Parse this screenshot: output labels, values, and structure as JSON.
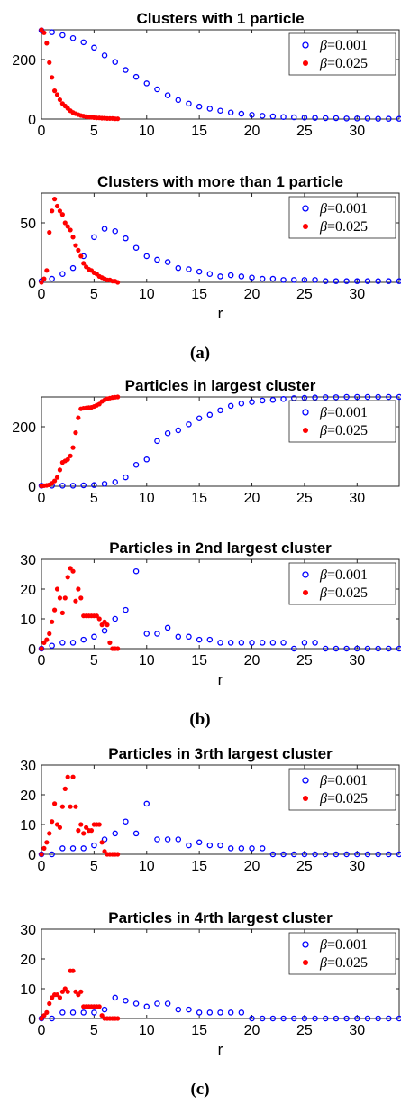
{
  "panel_labels": [
    "(a)",
    "(b)",
    "(c)"
  ],
  "chart_data": [
    {
      "type": "scatter",
      "title": "Clusters with 1 particle",
      "xlabel": "",
      "ylabel": "",
      "xlim": [
        0,
        34
      ],
      "ylim": [
        0,
        300
      ],
      "xticks": [
        0,
        5,
        10,
        15,
        20,
        25,
        30
      ],
      "yticks": [
        0,
        200
      ],
      "legend_position": "top-right",
      "series": [
        {
          "name": "β=0.001",
          "marker": "open-circle",
          "color": "#0000ff",
          "x": [
            0,
            1,
            2,
            3,
            4,
            5,
            6,
            7,
            8,
            9,
            10,
            11,
            12,
            13,
            14,
            15,
            16,
            17,
            18,
            19,
            20,
            21,
            22,
            23,
            24,
            25,
            26,
            27,
            28,
            29,
            30,
            31,
            32,
            33,
            34
          ],
          "y": [
            298,
            292,
            282,
            272,
            258,
            240,
            214,
            192,
            165,
            142,
            120,
            100,
            80,
            64,
            52,
            42,
            35,
            28,
            22,
            18,
            14,
            11,
            9,
            7,
            6,
            5,
            4,
            3,
            3,
            2,
            2,
            2,
            1,
            1,
            1
          ]
        },
        {
          "name": "β=0.025",
          "marker": "filled-dot",
          "color": "#ff0000",
          "x": [
            0,
            0.25,
            0.5,
            0.75,
            1,
            1.25,
            1.5,
            1.75,
            2,
            2.25,
            2.5,
            2.75,
            3,
            3.25,
            3.5,
            3.75,
            4,
            4.25,
            4.5,
            4.75,
            5,
            5.25,
            5.5,
            5.75,
            6,
            6.25,
            6.5,
            6.75,
            7,
            7.25
          ],
          "y": [
            300,
            290,
            255,
            190,
            140,
            95,
            82,
            65,
            52,
            44,
            36,
            28,
            22,
            18,
            15,
            12,
            10,
            8,
            7,
            6,
            5,
            4,
            4,
            3,
            3,
            2,
            2,
            2,
            1,
            1
          ]
        }
      ]
    },
    {
      "type": "scatter",
      "title": "Clusters with more than 1 particle",
      "xlabel": "r",
      "ylabel": "",
      "xlim": [
        0,
        34
      ],
      "ylim": [
        0,
        75
      ],
      "xticks": [
        0,
        5,
        10,
        15,
        20,
        25,
        30
      ],
      "yticks": [
        0,
        50
      ],
      "legend_position": "top-right",
      "series": [
        {
          "name": "β=0.001",
          "marker": "open-circle",
          "color": "#0000ff",
          "x": [
            0,
            1,
            2,
            3,
            4,
            5,
            6,
            7,
            8,
            9,
            10,
            11,
            12,
            13,
            14,
            15,
            16,
            17,
            18,
            19,
            20,
            21,
            22,
            23,
            24,
            25,
            26,
            27,
            28,
            29,
            30,
            31,
            32,
            33,
            34
          ],
          "y": [
            1,
            3,
            7,
            12,
            22,
            38,
            45,
            43,
            37,
            29,
            22,
            19,
            17,
            12,
            11,
            9,
            7,
            5,
            6,
            5,
            4,
            3,
            3,
            2,
            2,
            2,
            2,
            1,
            1,
            1,
            1,
            1,
            1,
            1,
            1
          ]
        },
        {
          "name": "β=0.025",
          "marker": "filled-dot",
          "color": "#ff0000",
          "x": [
            0,
            0.25,
            0.5,
            0.75,
            1,
            1.25,
            1.5,
            1.75,
            2,
            2.25,
            2.5,
            2.75,
            3,
            3.25,
            3.5,
            3.75,
            4,
            4.25,
            4.5,
            4.75,
            5,
            5.25,
            5.5,
            5.75,
            6,
            6.25,
            6.5,
            6.75,
            7,
            7.25
          ],
          "y": [
            0,
            3,
            10,
            42,
            60,
            70,
            64,
            60,
            57,
            50,
            47,
            44,
            38,
            31,
            27,
            22,
            16,
            13,
            11,
            10,
            8,
            7,
            5,
            4,
            3,
            2,
            2,
            1,
            1,
            0
          ]
        }
      ]
    },
    {
      "type": "scatter",
      "title": "Particles in largest cluster",
      "xlabel": "",
      "ylabel": "",
      "xlim": [
        0,
        34
      ],
      "ylim": [
        0,
        300
      ],
      "xticks": [
        0,
        5,
        10,
        15,
        20,
        25,
        30
      ],
      "yticks": [
        0,
        200
      ],
      "legend_position": "top-right",
      "series": [
        {
          "name": "β=0.001",
          "marker": "open-circle",
          "color": "#0000ff",
          "x": [
            0,
            1,
            2,
            3,
            4,
            5,
            6,
            7,
            8,
            9,
            10,
            11,
            12,
            13,
            14,
            15,
            16,
            17,
            18,
            19,
            20,
            21,
            22,
            23,
            24,
            25,
            26,
            27,
            28,
            29,
            30,
            31,
            32,
            33,
            34
          ],
          "y": [
            2,
            2,
            2,
            2,
            3,
            4,
            8,
            14,
            30,
            72,
            90,
            152,
            178,
            188,
            208,
            228,
            240,
            255,
            270,
            278,
            283,
            288,
            290,
            293,
            296,
            297,
            298,
            299,
            299,
            300,
            300,
            300,
            300,
            300,
            300
          ]
        },
        {
          "name": "β=0.025",
          "marker": "filled-dot",
          "color": "#ff0000",
          "x": [
            0,
            0.25,
            0.5,
            0.75,
            1,
            1.25,
            1.5,
            1.75,
            2,
            2.25,
            2.5,
            2.75,
            3,
            3.25,
            3.5,
            3.75,
            4,
            4.25,
            4.5,
            4.75,
            5,
            5.25,
            5.5,
            5.75,
            6,
            6.25,
            6.5,
            6.75,
            7,
            7.25
          ],
          "y": [
            1,
            2,
            3,
            5,
            10,
            18,
            30,
            55,
            80,
            85,
            90,
            102,
            130,
            180,
            230,
            260,
            262,
            263,
            264,
            265,
            268,
            272,
            276,
            285,
            290,
            294,
            296,
            298,
            299,
            300
          ]
        }
      ]
    },
    {
      "type": "scatter",
      "title": "Particles in 2nd largest cluster",
      "xlabel": "r",
      "ylabel": "",
      "xlim": [
        0,
        34
      ],
      "ylim": [
        0,
        30
      ],
      "xticks": [
        0,
        5,
        10,
        15,
        20,
        25,
        30
      ],
      "yticks": [
        0,
        10,
        20,
        30
      ],
      "legend_position": "top-right",
      "series": [
        {
          "name": "β=0.001",
          "marker": "open-circle",
          "color": "#0000ff",
          "x": [
            0,
            1,
            2,
            3,
            4,
            5,
            6,
            7,
            8,
            9,
            10,
            11,
            12,
            13,
            14,
            15,
            16,
            17,
            18,
            19,
            20,
            21,
            22,
            23,
            24,
            25,
            26,
            27,
            28,
            29,
            30,
            31,
            32,
            33,
            34
          ],
          "y": [
            0,
            1,
            2,
            2,
            3,
            4,
            6,
            10,
            13,
            26,
            5,
            5,
            7,
            4,
            4,
            3,
            3,
            2,
            2,
            2,
            2,
            2,
            2,
            2,
            0,
            2,
            2,
            0,
            0,
            0,
            0,
            0,
            0,
            0,
            0
          ]
        },
        {
          "name": "β=0.025",
          "marker": "filled-dot",
          "color": "#ff0000",
          "x": [
            0,
            0.25,
            0.5,
            0.75,
            1,
            1.25,
            1.5,
            1.75,
            2,
            2.25,
            2.5,
            2.75,
            3,
            3.25,
            3.5,
            3.75,
            4,
            4.25,
            4.5,
            4.75,
            5,
            5.25,
            5.5,
            5.75,
            6,
            6.25,
            6.5,
            6.75,
            7,
            7.25
          ],
          "y": [
            0,
            2,
            3,
            5,
            9,
            13,
            20,
            17,
            12,
            17,
            24,
            27,
            26,
            16,
            20,
            17,
            11,
            11,
            11,
            11,
            11,
            11,
            10,
            8,
            9,
            8,
            2,
            0,
            0,
            0
          ]
        }
      ]
    },
    {
      "type": "scatter",
      "title": "Particles in 3rth largest cluster",
      "xlabel": "",
      "ylabel": "",
      "xlim": [
        0,
        34
      ],
      "ylim": [
        0,
        30
      ],
      "xticks": [
        0,
        5,
        10,
        15,
        20,
        25,
        30
      ],
      "yticks": [
        0,
        10,
        20,
        30
      ],
      "legend_position": "top-right",
      "series": [
        {
          "name": "β=0.001",
          "marker": "open-circle",
          "color": "#0000ff",
          "x": [
            0,
            1,
            2,
            3,
            4,
            5,
            6,
            7,
            8,
            9,
            10,
            11,
            12,
            13,
            14,
            15,
            16,
            17,
            18,
            19,
            20,
            21,
            22,
            23,
            24,
            25,
            26,
            27,
            28,
            29,
            30,
            31,
            32,
            33,
            34
          ],
          "y": [
            0,
            0,
            2,
            2,
            2,
            3,
            5,
            7,
            11,
            7,
            17,
            5,
            5,
            5,
            3,
            4,
            3,
            3,
            2,
            2,
            2,
            2,
            0,
            0,
            0,
            0,
            0,
            0,
            0,
            0,
            0,
            0,
            0,
            0,
            0
          ]
        },
        {
          "name": "β=0.025",
          "marker": "filled-dot",
          "color": "#ff0000",
          "x": [
            0,
            0.25,
            0.5,
            0.75,
            1,
            1.25,
            1.5,
            1.75,
            2,
            2.25,
            2.5,
            2.75,
            3,
            3.25,
            3.5,
            3.75,
            4,
            4.25,
            4.5,
            4.75,
            5,
            5.25,
            5.5,
            5.75,
            6,
            6.25,
            6.5,
            6.75,
            7,
            7.25
          ],
          "y": [
            0,
            2,
            4,
            7,
            11,
            17,
            10,
            9,
            16,
            22,
            26,
            16,
            26,
            16,
            8,
            10,
            7,
            9,
            8,
            8,
            10,
            10,
            10,
            4,
            1,
            0,
            0,
            0,
            0,
            0
          ]
        }
      ]
    },
    {
      "type": "scatter",
      "title": "Particles in 4rth largest cluster",
      "xlabel": "r",
      "ylabel": "",
      "xlim": [
        0,
        34
      ],
      "ylim": [
        0,
        30
      ],
      "xticks": [
        0,
        5,
        10,
        15,
        20,
        25,
        30
      ],
      "yticks": [
        0,
        10,
        20,
        30
      ],
      "legend_position": "top-right",
      "series": [
        {
          "name": "β=0.001",
          "marker": "open-circle",
          "color": "#0000ff",
          "x": [
            0,
            1,
            2,
            3,
            4,
            5,
            6,
            7,
            8,
            9,
            10,
            11,
            12,
            13,
            14,
            15,
            16,
            17,
            18,
            19,
            20,
            21,
            22,
            23,
            24,
            25,
            26,
            27,
            28,
            29,
            30,
            31,
            32,
            33,
            34
          ],
          "y": [
            0,
            0,
            2,
            2,
            2,
            2,
            3,
            7,
            6,
            5,
            4,
            5,
            5,
            3,
            3,
            2,
            2,
            2,
            2,
            2,
            0,
            0,
            0,
            0,
            0,
            0,
            0,
            0,
            0,
            0,
            0,
            0,
            0,
            0,
            0
          ]
        },
        {
          "name": "β=0.025",
          "marker": "filled-dot",
          "color": "#ff0000",
          "x": [
            0,
            0.25,
            0.5,
            0.75,
            1,
            1.25,
            1.5,
            1.75,
            2,
            2.25,
            2.5,
            2.75,
            3,
            3.25,
            3.5,
            3.75,
            4,
            4.25,
            4.5,
            4.75,
            5,
            5.25,
            5.5,
            5.75,
            6,
            6.25,
            6.5,
            6.75,
            7,
            7.25
          ],
          "y": [
            0,
            1,
            2,
            5,
            7,
            8,
            8,
            7,
            9,
            10,
            9,
            16,
            16,
            9,
            8,
            9,
            4,
            4,
            4,
            4,
            4,
            4,
            4,
            1,
            0,
            0,
            0,
            0,
            0,
            0
          ]
        }
      ]
    }
  ]
}
